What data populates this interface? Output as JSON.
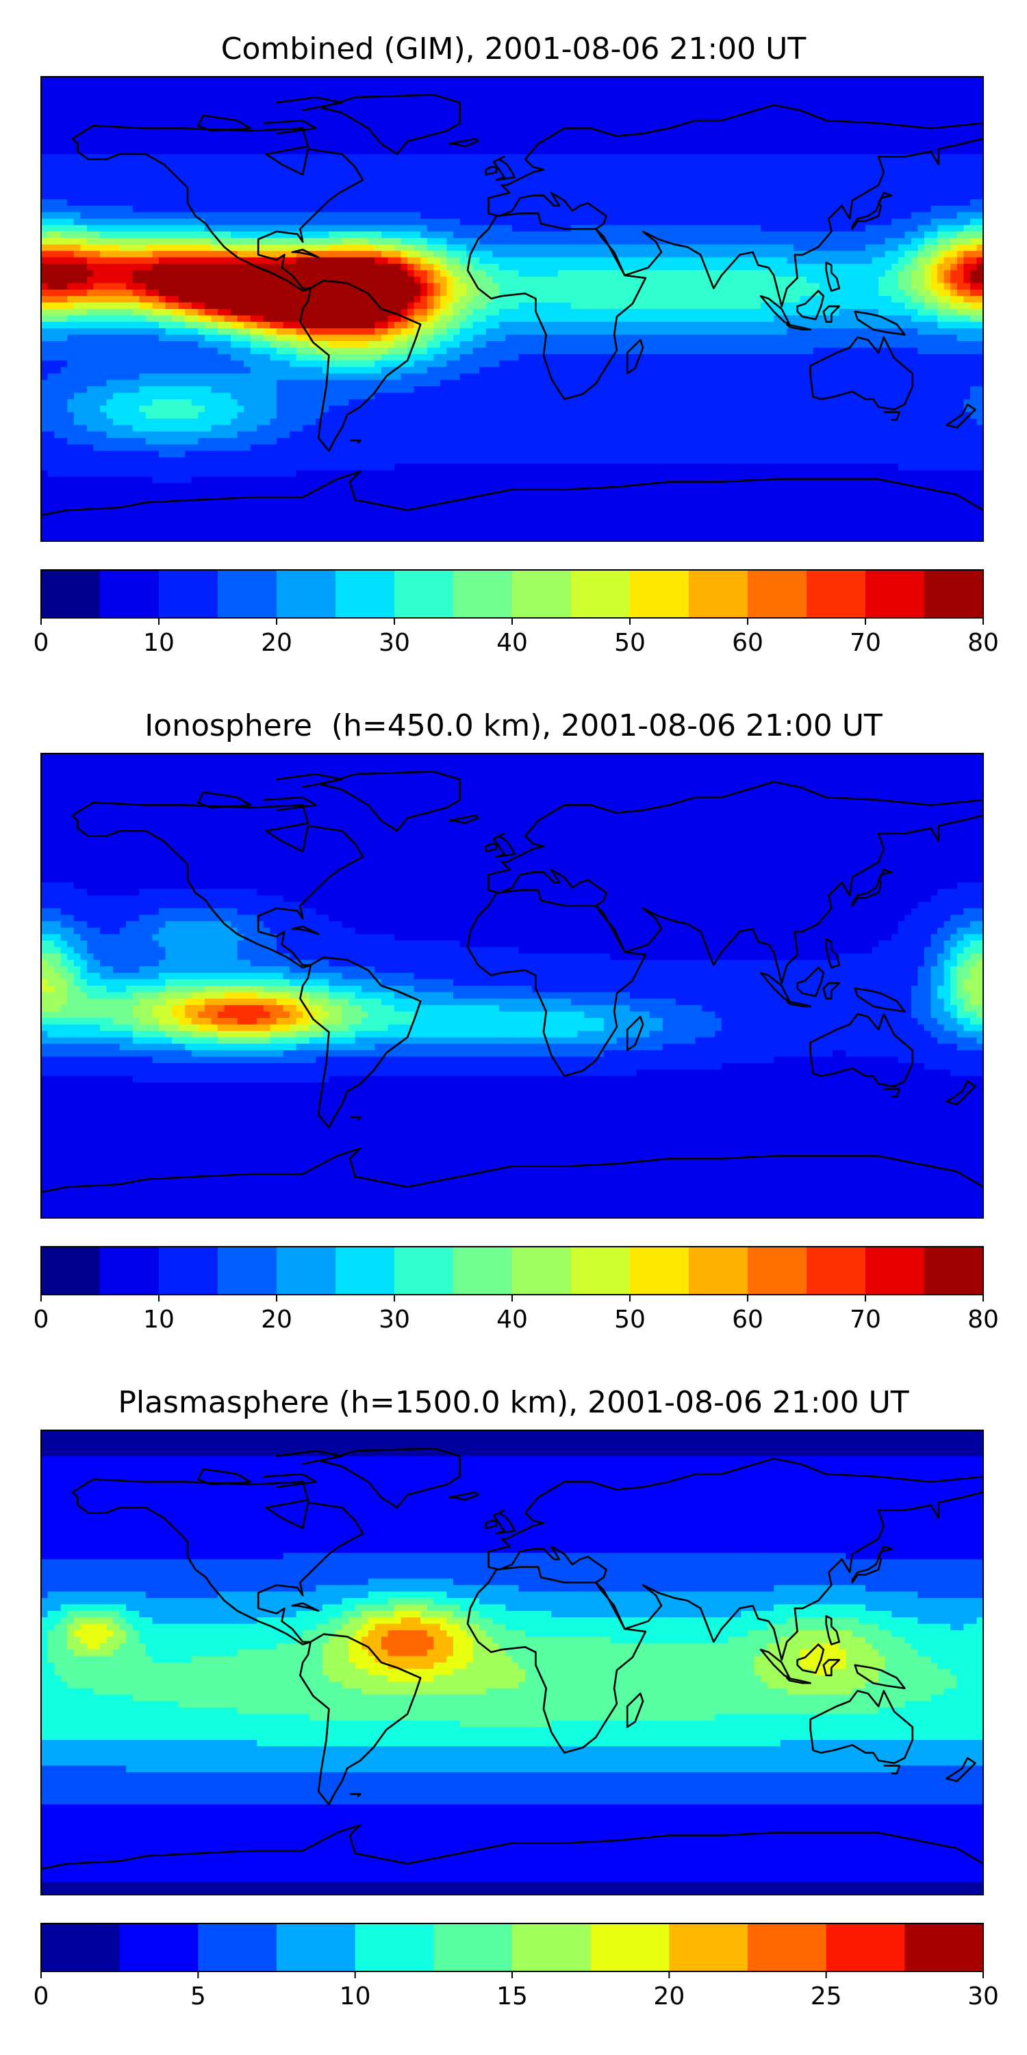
{
  "chart_data": [
    {
      "type": "heatmap",
      "title": "Combined (GIM), 2001-08-06 21:00 UT",
      "colorbar": {
        "range": [
          0,
          80
        ],
        "levels": [
          0,
          5,
          10,
          15,
          20,
          25,
          30,
          35,
          40,
          45,
          50,
          55,
          60,
          65,
          70,
          75,
          80
        ],
        "ticks": [
          0,
          10,
          20,
          30,
          40,
          50,
          60,
          70,
          80
        ]
      },
      "field_peaks": [
        {
          "lon": -130,
          "lat": 15,
          "value": 50,
          "sx": 30,
          "sy": 10
        },
        {
          "lon": -90,
          "lat": 6,
          "value": 72,
          "sx": 30,
          "sy": 9
        },
        {
          "lon": -55,
          "lat": 14,
          "value": 45,
          "sx": 22,
          "sy": 10
        },
        {
          "lon": -60,
          "lat": -6,
          "value": 40,
          "sx": 25,
          "sy": 12
        },
        {
          "lon": 180,
          "lat": 14,
          "value": 48,
          "sx": 18,
          "sy": 12
        },
        {
          "lon": -130,
          "lat": -40,
          "value": 22,
          "sx": 30,
          "sy": 10
        },
        {
          "lon": 60,
          "lat": 8,
          "value": 22,
          "sx": 80,
          "sy": 12
        }
      ],
      "field_base": 13
    },
    {
      "type": "heatmap",
      "title": "Ionosphere  (h=450.0 km), 2001-08-06 21:00 UT",
      "colorbar": {
        "range": [
          0,
          80
        ],
        "levels": [
          0,
          5,
          10,
          15,
          20,
          25,
          30,
          35,
          40,
          45,
          50,
          55,
          60,
          65,
          70,
          75,
          80
        ],
        "ticks": [
          0,
          10,
          20,
          30,
          40,
          50,
          60,
          70,
          80
        ]
      },
      "field_peaks": [
        {
          "lon": -110,
          "lat": -10,
          "value": 40,
          "sx": 45,
          "sy": 10
        },
        {
          "lon": -100,
          "lat": -12,
          "value": 20,
          "sx": 18,
          "sy": 6
        },
        {
          "lon": -120,
          "lat": 20,
          "value": 14,
          "sx": 20,
          "sy": 8
        },
        {
          "lon": 10,
          "lat": -15,
          "value": 18,
          "sx": 45,
          "sy": 8
        },
        {
          "lon": 180,
          "lat": 5,
          "value": 30,
          "sx": 12,
          "sy": 14
        }
      ],
      "field_base": 10
    },
    {
      "type": "heatmap",
      "title": "Plasmasphere (h=1500.0 km), 2001-08-06 21:00 UT",
      "colorbar": {
        "range": [
          0,
          30
        ],
        "levels": [
          0,
          2.5,
          5,
          7.5,
          10,
          12.5,
          15,
          17.5,
          20,
          22.5,
          25,
          27.5,
          30
        ],
        "ticks": [
          0,
          5,
          10,
          15,
          20,
          25,
          30
        ]
      },
      "field_peaks": [
        {
          "lon": -40,
          "lat": 10,
          "value": 12,
          "sx": 18,
          "sy": 10
        },
        {
          "lon": -160,
          "lat": 12,
          "value": 9,
          "sx": 10,
          "sy": 7
        },
        {
          "lon": 120,
          "lat": 5,
          "value": 6,
          "sx": 18,
          "sy": 12
        },
        {
          "lon": 0,
          "lat": -5,
          "value": 3,
          "sx": 90,
          "sy": 20
        }
      ],
      "field_base": 4,
      "field_band": {
        "lat": -10,
        "value": 8,
        "sy": 28
      }
    }
  ],
  "colors": {
    "jet16": [
      "#00008f",
      "#0000ee",
      "#0020ff",
      "#0060ff",
      "#00a0ff",
      "#00e0ff",
      "#30ffd0",
      "#70ff90",
      "#a0ff60",
      "#d0ff30",
      "#ffe800",
      "#ffb000",
      "#ff7000",
      "#ff3000",
      "#e80000",
      "#9f0000"
    ],
    "jet12": [
      "#00009f",
      "#0000ff",
      "#0050ff",
      "#00a8ff",
      "#10ffe0",
      "#58ffa0",
      "#a0ff58",
      "#e8ff10",
      "#ffb800",
      "#ff6800",
      "#ff1800",
      "#a80000"
    ],
    "coastline": "#000000"
  }
}
